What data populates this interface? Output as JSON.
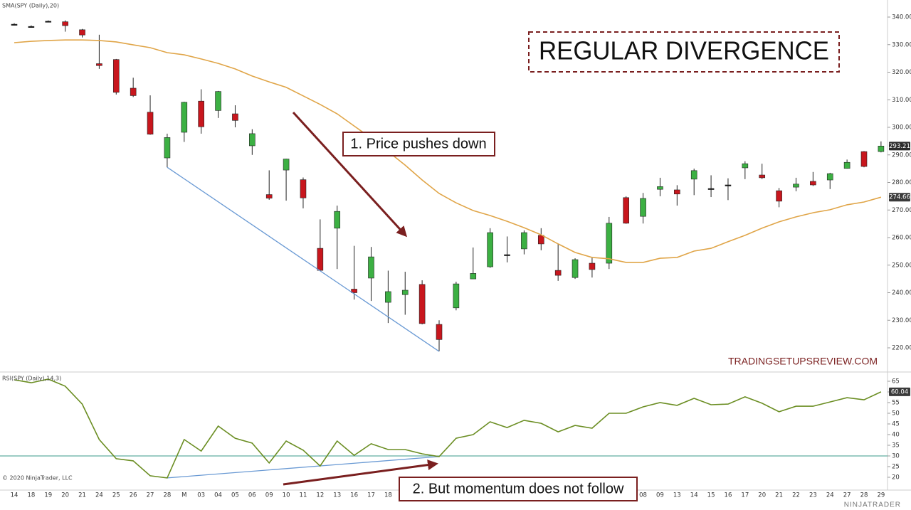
{
  "chart_data": [
    {
      "type": "candlestick",
      "title": "REGULAR DIVERGENCE",
      "open": [
        337.4,
        336.6,
        338.5,
        338.3,
        335.4,
        323.1,
        324.6,
        314.2,
        305.5,
        288.9,
        298.2,
        309.5,
        306.1,
        304.9,
        293.3,
        275.6,
        284.5,
        281.0,
        256.1,
        263.4,
        241.3,
        245.3,
        236.5,
        239.3,
        243.0,
        228.5,
        234.5,
        245.0,
        249.4,
        253.8,
        255.9,
        260.8,
        248.1,
        245.5,
        250.7,
        250.7,
        274.5,
        267.7,
        277.5,
        277.3,
        281.2,
        277.8,
        279.1,
        285.3,
        282.7,
        277.0,
        278.3,
        280.4,
        280.9,
        285.1,
        291.2,
        291.2
      ],
      "high": [
        337.8,
        337.0,
        338.8,
        338.8,
        335.7,
        333.6,
        324.8,
        318.0,
        311.6,
        297.7,
        309.3,
        313.8,
        313.2,
        308.0,
        299.3,
        284.4,
        288.6,
        281.8,
        266.6,
        271.6,
        257.0,
        256.6,
        248.0,
        247.6,
        244.5,
        230.0,
        244.0,
        256.4,
        263.4,
        260.4,
        262.6,
        263.4,
        257.7,
        252.5,
        253.0,
        267.5,
        275.0,
        276.2,
        281.7,
        279.0,
        285.0,
        282.6,
        281.5,
        287.7,
        286.8,
        278.0,
        281.7,
        283.8,
        283.5,
        288.3,
        291.4,
        294.9
      ],
      "low": [
        337.0,
        336.2,
        338.2,
        334.7,
        332.6,
        321.2,
        311.9,
        311.0,
        297.3,
        285.5,
        294.7,
        297.7,
        303.4,
        300.0,
        290.0,
        273.7,
        273.4,
        270.6,
        248.0,
        248.6,
        237.5,
        237.0,
        229.0,
        232.0,
        228.5,
        218.7,
        233.6,
        245.0,
        249.0,
        251.0,
        253.9,
        255.4,
        244.3,
        245.0,
        245.5,
        248.6,
        265.0,
        265.1,
        275.0,
        271.6,
        275.4,
        274.7,
        273.6,
        281.2,
        281.2,
        271.0,
        276.8,
        278.7,
        277.6,
        285.0,
        285.5,
        290.9
      ],
      "close": [
        337.4,
        336.6,
        338.5,
        336.9,
        333.5,
        322.4,
        312.7,
        311.5,
        297.5,
        296.3,
        309.1,
        300.2,
        313.0,
        302.5,
        297.7,
        274.3,
        288.5,
        274.4,
        248.1,
        269.5,
        240.0,
        253.0,
        240.4,
        240.9,
        228.8,
        223.0,
        243.2,
        247.0,
        261.8,
        253.8,
        261.8,
        257.7,
        246.3,
        252.0,
        248.4,
        265.2,
        265.2,
        274.2,
        278.5,
        275.8,
        284.3,
        277.8,
        279.1,
        286.8,
        281.7,
        273.2,
        279.4,
        279.1,
        283.2,
        287.3,
        285.8,
        293.21
      ],
      "up_color": "#3cb043",
      "down_color": "#c8161d",
      "doji_color": "#111111",
      "series": [
        {
          "name": "SMA(SPY (Daily),20)",
          "color": "#e0a548",
          "values": [
            330.7,
            331.2,
            331.5,
            331.7,
            331.7,
            331.5,
            331.0,
            329.9,
            328.9,
            327.1,
            326.3,
            324.8,
            323.2,
            321.2,
            318.6,
            316.5,
            314.5,
            311.4,
            308.3,
            304.9,
            300.5,
            296.1,
            291.2,
            286.3,
            280.9,
            276.0,
            272.6,
            269.8,
            268.0,
            265.9,
            263.6,
            261.0,
            257.7,
            254.6,
            252.8,
            252.3,
            251.0,
            251.0,
            252.5,
            252.8,
            255.1,
            256.1,
            258.5,
            260.8,
            263.4,
            265.7,
            267.5,
            269.0,
            270.1,
            271.9,
            272.9,
            274.66
          ]
        }
      ],
      "ylim": [
        212,
        344.13
      ],
      "yticks": [
        {
          "value": 220,
          "label": "220.00"
        },
        {
          "value": 230,
          "label": "230.00"
        },
        {
          "value": 240,
          "label": "240.00"
        },
        {
          "value": 250,
          "label": "250.00"
        },
        {
          "value": 260,
          "label": "260.00"
        },
        {
          "value": 270,
          "label": "270.00"
        },
        {
          "value": 280,
          "label": "280.00"
        },
        {
          "value": 290,
          "label": "290.00"
        },
        {
          "value": 300,
          "label": "300.00"
        },
        {
          "value": 310,
          "label": "310.00"
        },
        {
          "value": 320,
          "label": "320.00"
        },
        {
          "value": 330,
          "label": "330.00"
        },
        {
          "value": 340,
          "label": "340.00"
        }
      ],
      "grid": false,
      "annotations": [
        "1. Price pushes down"
      ],
      "watermark": "TRADINGSETUPSREVIEW.COM"
    },
    {
      "type": "line",
      "title": "RSI(SPY (Daily),14,3)",
      "categories": [
        "14",
        "18",
        "19",
        "20",
        "21",
        "24",
        "25",
        "26",
        "27",
        "28",
        "M",
        "03",
        "04",
        "05",
        "06",
        "09",
        "10",
        "11",
        "12",
        "13",
        "16",
        "17",
        "18",
        null,
        null,
        null,
        null,
        null,
        null,
        null,
        null,
        null,
        null,
        null,
        null,
        null,
        null,
        "08",
        "09",
        "13",
        "14",
        "15",
        "16",
        "17",
        "20",
        "21",
        "22",
        "23",
        "24",
        "27",
        "28",
        "29"
      ],
      "series": [
        {
          "name": "RSI(SPY (Daily),14,3)",
          "color": "#6b8e23",
          "values": [
            65.7,
            64.3,
            66.0,
            62.7,
            54.3,
            37.7,
            28.7,
            27.7,
            20.7,
            19.7,
            37.7,
            32.3,
            44.0,
            38.3,
            36.0,
            26.7,
            37.0,
            32.7,
            25.3,
            37.0,
            30.3,
            35.7,
            33.0,
            33.0,
            31.0,
            29.7,
            38.3,
            40.0,
            46.0,
            43.3,
            46.7,
            45.3,
            41.3,
            44.3,
            43.0,
            50.0,
            50.0,
            53.0,
            55.0,
            53.7,
            57.0,
            54.0,
            54.3,
            57.7,
            54.7,
            50.7,
            53.3,
            53.3,
            55.3,
            57.3,
            56.3,
            60.04
          ]
        }
      ],
      "ylim": [
        14,
        68.67
      ],
      "yticks": [
        20,
        25,
        30,
        35,
        40,
        45,
        50,
        55,
        60,
        65
      ],
      "reference_line": 30,
      "reference_color": "#3a9a8a",
      "grid": false,
      "annotations": [
        "2. But momentum does not follow"
      ]
    }
  ],
  "copyright": "© 2020 NinjaTrader, LLC",
  "logo": "NINJATRADER"
}
